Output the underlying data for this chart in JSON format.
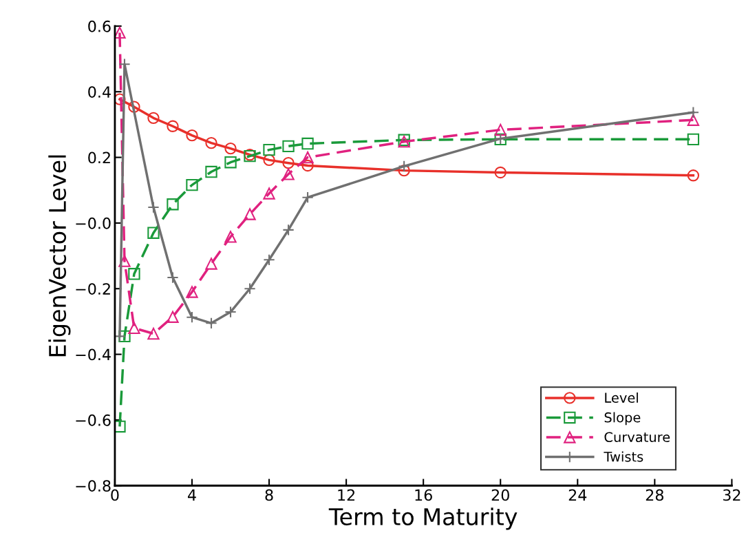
{
  "chart_data": {
    "type": "line",
    "xlabel": "Term to Maturity",
    "ylabel": "EigenVector Level",
    "xlim": [
      0,
      32
    ],
    "xticks": [
      0,
      4,
      8,
      12,
      16,
      20,
      24,
      28,
      32
    ],
    "ylim": [
      -0.8,
      0.6
    ],
    "yticks": [
      {
        "value": -0.8,
        "label": "−0.8"
      },
      {
        "value": -0.6,
        "label": "−0.6"
      },
      {
        "value": -0.4,
        "label": "−0.4"
      },
      {
        "value": -0.2,
        "label": "−0.2"
      },
      {
        "value": 0,
        "label": "−0.0"
      },
      0.2,
      0.4,
      0.6
    ],
    "grid": false,
    "legend": "bottom right",
    "series": [
      {
        "name": "Level",
        "color": "#e8302a",
        "marker": "circle",
        "line_style": "solid",
        "x": [
          0.25,
          1,
          2,
          3,
          4,
          5,
          6,
          7,
          8,
          9,
          10,
          15,
          20,
          30
        ],
        "values": [
          0.377,
          0.354,
          0.32,
          0.295,
          0.267,
          0.244,
          0.227,
          0.208,
          0.192,
          0.183,
          0.175,
          0.16,
          0.154,
          0.145
        ]
      },
      {
        "name": "Slope",
        "color": "#1a9a3a",
        "marker": "square",
        "line_style": "dashed",
        "x": [
          0.25,
          0.5,
          1,
          2,
          3,
          4,
          5,
          6,
          7,
          8,
          9,
          10,
          15,
          20,
          30
        ],
        "values": [
          -0.62,
          -0.345,
          -0.155,
          -0.03,
          0.057,
          0.116,
          0.156,
          0.185,
          0.204,
          0.223,
          0.234,
          0.242,
          0.253,
          0.255,
          0.255
        ]
      },
      {
        "name": "Curvature",
        "color": "#e0217f",
        "marker": "triangle",
        "line_style": "dashed",
        "x": [
          0.25,
          0.5,
          1,
          2,
          3,
          4,
          5,
          6,
          7,
          8,
          9,
          10,
          15,
          20,
          30
        ],
        "values": [
          0.58,
          -0.116,
          -0.32,
          -0.337,
          -0.286,
          -0.21,
          -0.124,
          -0.042,
          0.027,
          0.09,
          0.149,
          0.2,
          0.248,
          0.284,
          0.314
        ]
      },
      {
        "name": "Twists",
        "color": "#707070",
        "marker": "cross",
        "line_style": "solid",
        "x": [
          0.25,
          0.5,
          2,
          3,
          4,
          5,
          6,
          7,
          8,
          9,
          10,
          15,
          20,
          30
        ],
        "values": [
          -0.345,
          0.484,
          0.048,
          -0.166,
          -0.287,
          -0.305,
          -0.271,
          -0.2,
          -0.112,
          -0.021,
          0.078,
          0.173,
          0.257,
          0.337
        ]
      }
    ]
  }
}
